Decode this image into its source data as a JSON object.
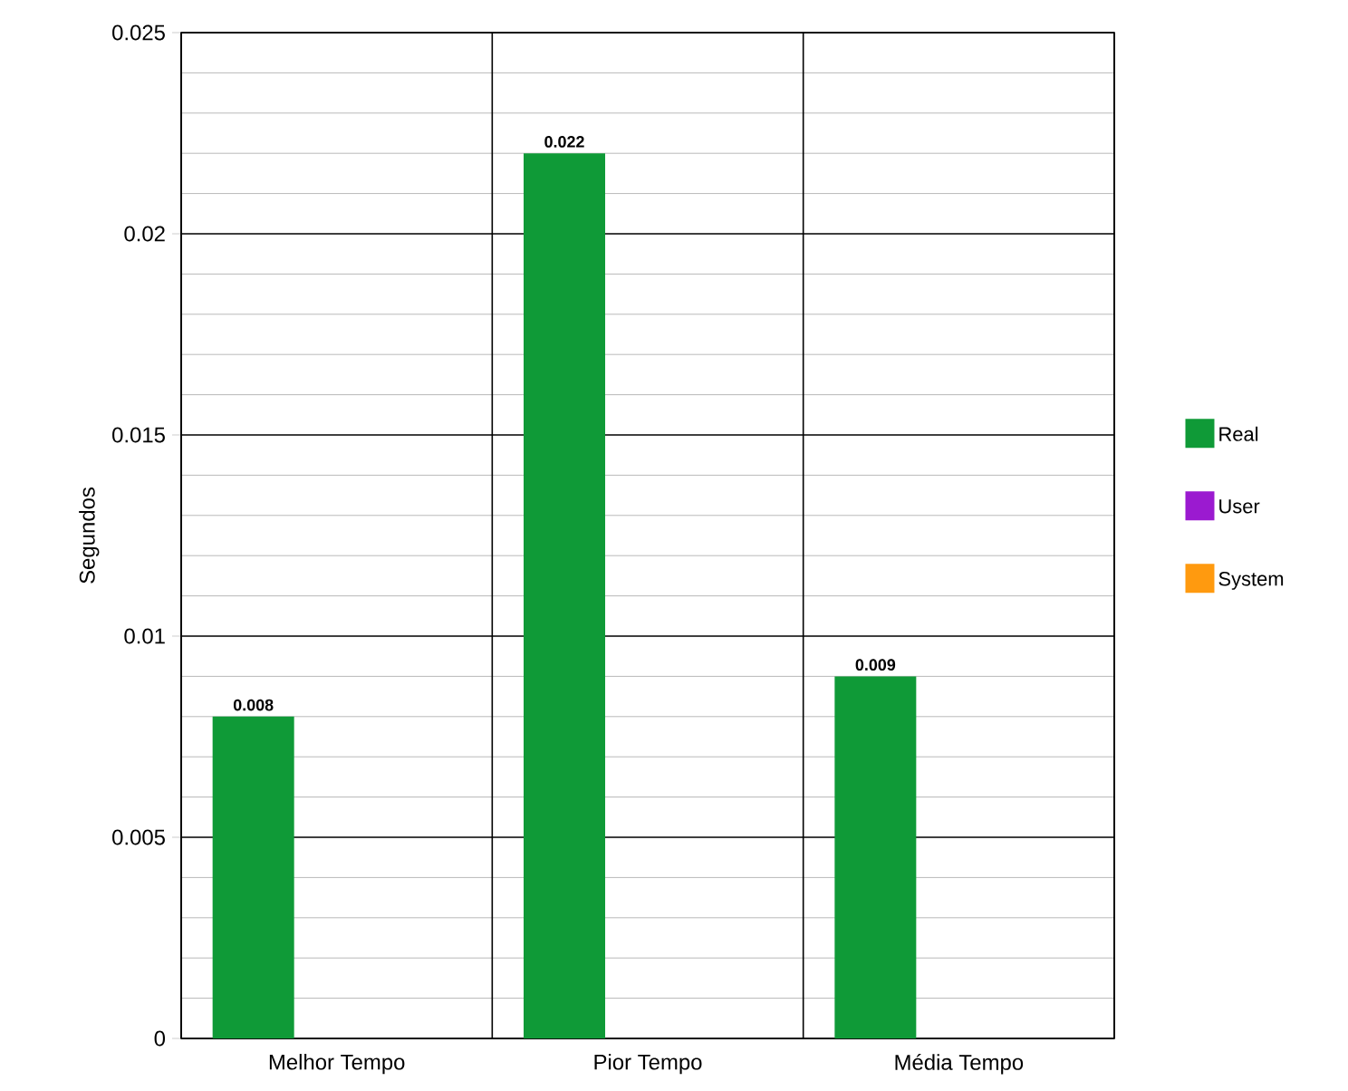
{
  "chart_data": {
    "type": "bar",
    "ylabel": "Segundos",
    "categories": [
      "Melhor Tempo",
      "Pior Tempo",
      "Média Tempo"
    ],
    "series": [
      {
        "name": "Real",
        "color": "#0f9a37",
        "values": [
          0.008,
          0.022,
          0.009
        ],
        "value_labels": [
          "0.008",
          "0.022",
          "0.009"
        ]
      },
      {
        "name": "User",
        "color": "#9b1ad0",
        "values": [
          0,
          0,
          0
        ]
      },
      {
        "name": "System",
        "color": "#ff9a0f",
        "values": [
          0,
          0,
          0
        ]
      }
    ],
    "ylim": [
      0,
      0.025
    ],
    "yticks": [
      0,
      0.005,
      0.01,
      0.015,
      0.02,
      0.025
    ],
    "grid": true,
    "legend": "right"
  }
}
